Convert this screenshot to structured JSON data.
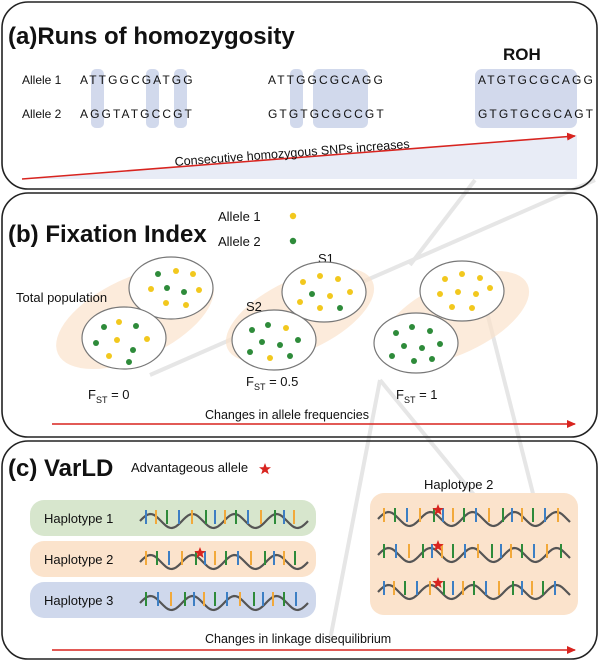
{
  "panels": {
    "roh": {
      "title": "(a)Runs of homozygosity",
      "roh_label": "ROH",
      "allele1_label": "Allele 1",
      "allele2_label": "Allele 2",
      "groups": [
        {
          "a1": "ATTGGCGATGG",
          "a2": "AGGTATGCCGT"
        },
        {
          "a1": "ATTGGCGCAGG",
          "a2": "GTGTGCGCCGT"
        },
        {
          "a1": "ATGTGCGCAGG",
          "a2": "GTGTGCGCAGT"
        }
      ],
      "arrow_caption": "Consecutive homozygous SNPs increases"
    },
    "fst": {
      "title": "(b) Fixation Index",
      "legend_allele1": "Allele 1",
      "legend_allele2": "Allele 2",
      "total_population": "Total population",
      "s1": "S1",
      "s2": "S2",
      "fst_values": [
        "0",
        "0.5",
        "1"
      ],
      "fst_symbol": "F",
      "fst_sub": "ST",
      "arrow_caption": "Changes in allele frequencies"
    },
    "varld": {
      "title": "(c) VarLD",
      "legend_label": "Advantageous allele",
      "haplotypes": [
        "Haplotype 1",
        "Haplotype 2",
        "Haplotype 3"
      ],
      "right_label": "Haplotype 2",
      "arrow_caption": "Changes in linkage disequilibrium"
    }
  },
  "colors": {
    "allele1": "#f2c81e",
    "allele2": "#2e8b3a",
    "arrow": "#d8241f",
    "highlight": "#cdd5ea",
    "hap1_bg": "#d7e6cd",
    "hap2_bg": "#fbe3cc",
    "hap3_bg": "#cfd8ec",
    "star": "#d8241f"
  }
}
